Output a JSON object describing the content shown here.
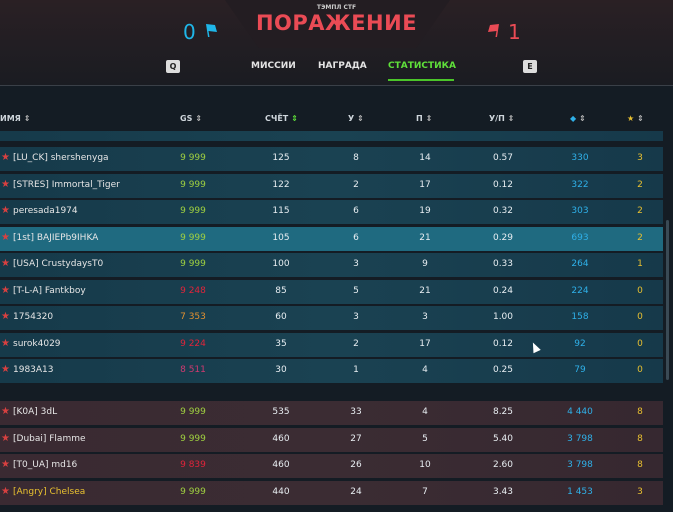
{
  "header": {
    "mode": "ТЭМПЛ CTF",
    "result": "ПОРАЖЕНИЕ",
    "team_blue_score": "0",
    "team_red_score": "1"
  },
  "tabs": [
    {
      "label": "МИССИИ"
    },
    {
      "label": "НАГРАДА"
    },
    {
      "label": "СТАТИСТИКА",
      "active": true
    }
  ],
  "keys": {
    "prev": "Q",
    "next": "E"
  },
  "columns": {
    "name": "ИМЯ",
    "gs": "GS",
    "score": "СЧЁТ",
    "kills": "У",
    "deaths": "П",
    "kd": "У/П",
    "crystals_icon": "crystal-icon",
    "stars_icon": "star-icon"
  },
  "colors": {
    "blue": "#1fb6e8",
    "red": "#ea4b55",
    "accent": "#5fe03a"
  },
  "ally_rows": [
    {
      "name": "[LU_CK] shershenyga",
      "gs": "9 999",
      "score": "125",
      "k": "8",
      "d": "14",
      "kd": "0.57",
      "cry": "330",
      "stars": "3",
      "gsc": "g"
    },
    {
      "name": "[STRES] Immortal_Tiger",
      "gs": "9 999",
      "score": "122",
      "k": "2",
      "d": "17",
      "kd": "0.12",
      "cry": "322",
      "stars": "2",
      "gsc": "g"
    },
    {
      "name": "peresada1974",
      "gs": "9 999",
      "score": "115",
      "k": "6",
      "d": "19",
      "kd": "0.32",
      "cry": "303",
      "stars": "2",
      "gsc": "g"
    },
    {
      "name": "[1st] BAJIEPb9IHKA",
      "gs": "9 999",
      "score": "105",
      "k": "6",
      "d": "21",
      "kd": "0.29",
      "cry": "693",
      "stars": "2",
      "gsc": "g",
      "hl": true
    },
    {
      "name": "[USA] CrustydaysT0",
      "gs": "9 999",
      "score": "100",
      "k": "3",
      "d": "9",
      "kd": "0.33",
      "cry": "264",
      "stars": "1",
      "gsc": "g"
    },
    {
      "name": "[T-L-A] Fantkboy",
      "gs": "9 248",
      "score": "85",
      "k": "5",
      "d": "21",
      "kd": "0.24",
      "cry": "224",
      "stars": "0",
      "gsc": "r"
    },
    {
      "name": "1754320",
      "gs": "7 353",
      "score": "60",
      "k": "3",
      "d": "3",
      "kd": "1.00",
      "cry": "158",
      "stars": "0",
      "gsc": "o"
    },
    {
      "name": "surok4029",
      "gs": "9 224",
      "score": "35",
      "k": "2",
      "d": "17",
      "kd": "0.12",
      "cry": "92",
      "stars": "0",
      "gsc": "r"
    },
    {
      "name": "1983A13",
      "gs": "8 511",
      "score": "30",
      "k": "1",
      "d": "4",
      "kd": "0.25",
      "cry": "79",
      "stars": "0",
      "gsc": "p"
    }
  ],
  "enemy_rows": [
    {
      "name": "[K0A] 3dL",
      "gs": "9 999",
      "score": "535",
      "k": "33",
      "d": "4",
      "kd": "8.25",
      "cry": "4 440",
      "stars": "8",
      "gsc": "g"
    },
    {
      "name": "[Dubai] Flamme",
      "gs": "9 999",
      "score": "460",
      "k": "27",
      "d": "5",
      "kd": "5.40",
      "cry": "3 798",
      "stars": "8",
      "gsc": "g"
    },
    {
      "name": "[T0_UA] md16",
      "gs": "9 839",
      "score": "460",
      "k": "26",
      "d": "10",
      "kd": "2.60",
      "cry": "3 798",
      "stars": "8",
      "gsc": "r"
    },
    {
      "name": "[Angry] Chelsea",
      "gs": "9 999",
      "score": "440",
      "k": "24",
      "d": "7",
      "kd": "3.43",
      "cry": "1 453",
      "stars": "3",
      "gsc": "g",
      "yellow": true
    }
  ]
}
